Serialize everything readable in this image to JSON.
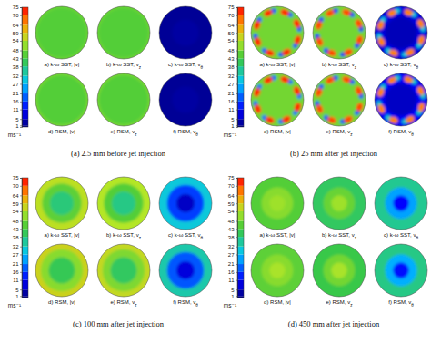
{
  "chart_data": {
    "type": "heatmap",
    "colorbar": {
      "range": [
        0,
        75
      ],
      "ticks": [
        1,
        5,
        11,
        16,
        21,
        27,
        32,
        38,
        43,
        48,
        54,
        59,
        64,
        70,
        75
      ],
      "label": "ms⁻¹"
    },
    "panels": [
      {
        "caption": "(a) 2.5 mm before jet injection",
        "plots": [
          {
            "label": "a) k-ω SST, |v|",
            "rings": [
              {
                "r": 1.0,
                "value": 47
              },
              {
                "r": 0.93,
                "value": 45
              }
            ]
          },
          {
            "label": "b) k-ω SST, v",
            "label_sub": "z",
            "rings": [
              {
                "r": 1.0,
                "value": 47
              },
              {
                "r": 0.93,
                "value": 45
              }
            ]
          },
          {
            "label": "c) k-ω SST, v",
            "label_sub": "θ",
            "rings": [
              {
                "r": 1.0,
                "value": 2
              },
              {
                "r": 0.5,
                "value": 3
              }
            ]
          },
          {
            "label": "d) RSM, |v|",
            "rings": [
              {
                "r": 1.0,
                "value": 48
              },
              {
                "r": 0.93,
                "value": 45
              }
            ]
          },
          {
            "label": "e) RSM, v",
            "label_sub": "z",
            "rings": [
              {
                "r": 1.0,
                "value": 48
              },
              {
                "r": 0.93,
                "value": 45
              }
            ]
          },
          {
            "label": "f) RSM, v",
            "label_sub": "θ",
            "rings": [
              {
                "r": 1.0,
                "value": 2
              },
              {
                "r": 0.5,
                "value": 3
              }
            ]
          }
        ]
      },
      {
        "caption": "(b) 25 mm after jet injection",
        "jet_angles": [
          20,
          65,
          110,
          155,
          200,
          245,
          290,
          335
        ],
        "plots": [
          {
            "label": "a) k-ω SST, |v|",
            "rings": [
              {
                "r": 1.0,
                "value": 48
              }
            ],
            "jet_value": 72,
            "wake_value": 18
          },
          {
            "label": "b) k-ω SST, v",
            "label_sub": "z",
            "rings": [
              {
                "r": 1.0,
                "value": 48
              }
            ],
            "jet_value": 70,
            "wake_value": 16
          },
          {
            "label": "c) k-ω SST, v",
            "label_sub": "θ",
            "rings": [
              {
                "r": 1.0,
                "value": 8
              },
              {
                "r": 0.6,
                "value": 5
              }
            ],
            "jet_value": 66,
            "wake_value": 30
          },
          {
            "label": "d) RSM, |v|",
            "rings": [
              {
                "r": 1.0,
                "value": 48
              }
            ],
            "jet_value": 72,
            "wake_value": 20
          },
          {
            "label": "e) RSM, v",
            "label_sub": "z",
            "rings": [
              {
                "r": 1.0,
                "value": 48
              }
            ],
            "jet_value": 70,
            "wake_value": 18
          },
          {
            "label": "f) RSM, v",
            "label_sub": "θ",
            "rings": [
              {
                "r": 1.0,
                "value": 10
              },
              {
                "r": 0.6,
                "value": 6
              }
            ],
            "jet_value": 66,
            "wake_value": 32
          }
        ]
      },
      {
        "caption": "(c) 100 mm after jet injection",
        "plots": [
          {
            "label": "a) k-ω SST, |v|",
            "rings": [
              {
                "r": 1.0,
                "value": 55
              },
              {
                "r": 0.75,
                "value": 46
              },
              {
                "r": 0.45,
                "value": 38
              }
            ]
          },
          {
            "label": "b) k-ω SST, v",
            "label_sub": "z",
            "rings": [
              {
                "r": 1.0,
                "value": 54
              },
              {
                "r": 0.75,
                "value": 45
              },
              {
                "r": 0.45,
                "value": 37
              }
            ]
          },
          {
            "label": "c) k-ω SST, v",
            "label_sub": "θ",
            "rings": [
              {
                "r": 1.0,
                "value": 30
              },
              {
                "r": 0.7,
                "value": 16
              },
              {
                "r": 0.35,
                "value": 6
              }
            ]
          },
          {
            "label": "d) RSM, |v|",
            "rings": [
              {
                "r": 1.0,
                "value": 57
              },
              {
                "r": 0.8,
                "value": 50
              },
              {
                "r": 0.5,
                "value": 41
              }
            ]
          },
          {
            "label": "e) RSM, v",
            "label_sub": "z",
            "rings": [
              {
                "r": 1.0,
                "value": 56
              },
              {
                "r": 0.8,
                "value": 49
              },
              {
                "r": 0.5,
                "value": 40
              }
            ]
          },
          {
            "label": "f) RSM, v",
            "label_sub": "θ",
            "rings": [
              {
                "r": 1.0,
                "value": 34
              },
              {
                "r": 0.7,
                "value": 18
              },
              {
                "r": 0.35,
                "value": 8
              }
            ]
          }
        ]
      },
      {
        "caption": "(d) 450 mm after jet injection",
        "plots": [
          {
            "label": "a) k-ω SST, |v|",
            "rings": [
              {
                "r": 1.0,
                "value": 45
              },
              {
                "r": 0.6,
                "value": 50
              },
              {
                "r": 0.3,
                "value": 52
              }
            ]
          },
          {
            "label": "b) k-ω SST, v",
            "label_sub": "z",
            "rings": [
              {
                "r": 1.0,
                "value": 40
              },
              {
                "r": 0.6,
                "value": 47
              },
              {
                "r": 0.3,
                "value": 52
              }
            ]
          },
          {
            "label": "c) k-ω SST, v",
            "label_sub": "θ",
            "rings": [
              {
                "r": 1.0,
                "value": 36
              },
              {
                "r": 0.6,
                "value": 24
              },
              {
                "r": 0.3,
                "value": 11
              }
            ]
          },
          {
            "label": "d) RSM, |v|",
            "rings": [
              {
                "r": 1.0,
                "value": 46
              },
              {
                "r": 0.6,
                "value": 50
              },
              {
                "r": 0.3,
                "value": 53
              }
            ]
          },
          {
            "label": "e) RSM, v",
            "label_sub": "z",
            "rings": [
              {
                "r": 1.0,
                "value": 42
              },
              {
                "r": 0.6,
                "value": 48
              },
              {
                "r": 0.3,
                "value": 53
              }
            ]
          },
          {
            "label": "f) RSM, v",
            "label_sub": "θ",
            "rings": [
              {
                "r": 1.0,
                "value": 37
              },
              {
                "r": 0.6,
                "value": 25
              },
              {
                "r": 0.3,
                "value": 12
              }
            ]
          }
        ]
      }
    ]
  }
}
